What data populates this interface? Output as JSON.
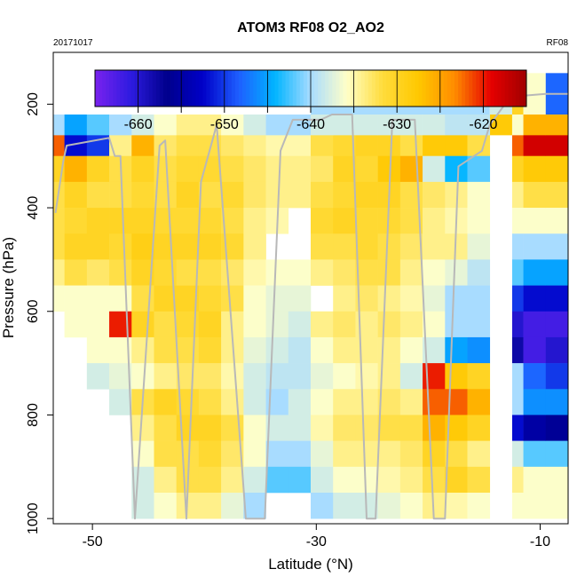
{
  "chart_data": {
    "type": "heatmap",
    "title": "ATOM3 RF08 O2_AO2",
    "date_label": "20171017",
    "flight_label": "RF08",
    "xlabel": "Latitude (°N)",
    "ylabel": "Pressure (hPa)",
    "xlim": [
      -53.5,
      -7.5
    ],
    "ylim": [
      1010,
      100
    ],
    "x_ticks": [
      -50,
      -30,
      -10
    ],
    "y_ticks": [
      200,
      400,
      600,
      800,
      1000
    ],
    "colorbar": {
      "range": [
        -665,
        -615
      ],
      "ticks": [
        -660,
        -650,
        -640,
        -630,
        -620
      ],
      "colors": [
        "#7a22ee",
        "#2d1be0",
        "#00008c",
        "#0000c8",
        "#1e5fff",
        "#00b4ff",
        "#a8dcff",
        "#ffffc8",
        "#ffdc3c",
        "#ffc800",
        "#ff8c00",
        "#e60000",
        "#a00000"
      ]
    },
    "layers_hPa": [
      [
        220,
        260
      ],
      [
        260,
        300
      ],
      [
        300,
        350
      ],
      [
        350,
        400
      ],
      [
        400,
        450
      ],
      [
        450,
        500
      ],
      [
        500,
        550
      ],
      [
        550,
        600
      ],
      [
        600,
        650
      ],
      [
        650,
        700
      ],
      [
        700,
        750
      ],
      [
        750,
        800
      ],
      [
        800,
        850
      ],
      [
        850,
        900
      ],
      [
        900,
        950
      ],
      [
        950,
        1000
      ]
    ],
    "columns": [
      {
        "lat_range": [
          -53.5,
          -52.5
        ],
        "values": [
          -640,
          -622,
          -630,
          -632,
          -632,
          -632,
          -634,
          -636,
          null,
          null,
          null,
          null,
          null,
          null,
          null,
          null
        ]
      },
      {
        "lat_range": [
          -52.5,
          -50.5
        ],
        "values": [
          -645,
          -652,
          -626,
          -630,
          -631,
          -630,
          -632,
          -636,
          -636,
          null,
          null,
          null,
          null,
          null,
          null,
          null
        ]
      },
      {
        "lat_range": [
          -50.5,
          -48.5
        ],
        "values": [
          -642,
          -650,
          -630,
          -632,
          -630,
          -630,
          -633,
          -636,
          -636,
          -636,
          -638,
          null,
          null,
          null,
          null,
          null
        ]
      },
      {
        "lat_range": [
          -48.5,
          -46.5
        ],
        "values": [
          -640,
          -634,
          -632,
          -632,
          -630,
          -631,
          -632,
          -636,
          -620,
          -636,
          -637,
          -638,
          null,
          null,
          null,
          null
        ]
      },
      {
        "lat_range": [
          -46.5,
          -44.5
        ],
        "values": [
          -638,
          -626,
          -630,
          -631,
          -630,
          -629,
          -630,
          -632,
          -630,
          -634,
          -636,
          -632,
          -634,
          -636,
          -638,
          -638
        ]
      },
      {
        "lat_range": [
          -44.5,
          -42.5
        ],
        "values": [
          -636,
          -633,
          -632,
          -632,
          -631,
          -630,
          -631,
          -630,
          -632,
          -632,
          -634,
          -630,
          -632,
          -632,
          -634,
          -636
        ]
      },
      {
        "lat_range": [
          -42.5,
          -40.5
        ],
        "values": [
          -634,
          -632,
          -631,
          -630,
          -631,
          -630,
          -632,
          -630,
          -631,
          -632,
          -633,
          -631,
          -630,
          -632,
          -632,
          -634
        ]
      },
      {
        "lat_range": [
          -40.5,
          -38.5
        ],
        "values": [
          -634,
          -632,
          -631,
          -632,
          -631,
          -630,
          -632,
          -631,
          -630,
          -631,
          -633,
          -632,
          -630,
          -631,
          -632,
          -634
        ]
      },
      {
        "lat_range": [
          -38.5,
          -36.5
        ],
        "values": [
          -636,
          -633,
          -632,
          -631,
          -632,
          -631,
          -633,
          -632,
          -634,
          -634,
          -635,
          -634,
          -632,
          -633,
          -634,
          -637
        ]
      },
      {
        "lat_range": [
          -36.5,
          -34.5
        ],
        "values": [
          -638,
          -634,
          -633,
          -633,
          -634,
          -634,
          -635,
          -636,
          -636,
          -637,
          -638,
          -638,
          -636,
          -636,
          -638,
          -640
        ]
      },
      {
        "lat_range": [
          -34.5,
          -32.5
        ],
        "values": [
          -640,
          -635,
          -634,
          -634,
          -635,
          null,
          -636,
          -637,
          -637,
          -638,
          -639,
          -640,
          -638,
          -640,
          -642,
          null
        ]
      },
      {
        "lat_range": [
          -32.5,
          -30.5
        ],
        "values": [
          -640,
          -635,
          -634,
          -634,
          null,
          null,
          -636,
          -637,
          -638,
          -639,
          -639,
          -638,
          -638,
          -640,
          -642,
          null
        ]
      },
      {
        "lat_range": [
          -30.5,
          -28.5
        ],
        "values": [
          -638,
          -632,
          -633,
          -632,
          -631,
          -632,
          -634,
          null,
          -634,
          -636,
          -637,
          -636,
          -635,
          -637,
          -638,
          -640
        ]
      },
      {
        "lat_range": [
          -28.5,
          -26.5
        ],
        "values": [
          -638,
          -631,
          -630,
          -631,
          -630,
          -632,
          -633,
          -634,
          -633,
          -634,
          -636,
          -634,
          -633,
          -634,
          -636,
          -638
        ]
      },
      {
        "lat_range": [
          -26.5,
          -24.5
        ],
        "values": [
          -638,
          -630,
          -631,
          -630,
          -631,
          -631,
          -632,
          -633,
          -634,
          -634,
          -635,
          -634,
          -633,
          -634,
          -636,
          -638
        ]
      },
      {
        "lat_range": [
          -24.5,
          -22.5
        ],
        "values": [
          -638,
          -630,
          -628,
          -630,
          -631,
          -632,
          -632,
          -634,
          -633,
          -634,
          -634,
          -633,
          -632,
          -634,
          -635,
          -637
        ]
      },
      {
        "lat_range": [
          -22.5,
          -20.5
        ],
        "values": [
          -638,
          -632,
          -626,
          -632,
          -632,
          -633,
          -634,
          -635,
          -634,
          -636,
          -638,
          -634,
          -632,
          -633,
          -634,
          -636
        ]
      },
      {
        "lat_range": [
          -20.5,
          -18.5
        ],
        "values": [
          -638,
          -628,
          -638,
          -633,
          -634,
          -634,
          -636,
          -637,
          -636,
          -638,
          -620,
          -622,
          -626,
          -630,
          -632,
          -634
        ]
      },
      {
        "lat_range": [
          -18.5,
          -16.5
        ],
        "values": [
          -639,
          -628,
          -644,
          -634,
          -635,
          -634,
          -637,
          -640,
          -640,
          -645,
          -628,
          -622,
          -628,
          -632,
          -630,
          -635
        ]
      },
      {
        "lat_range": [
          -16.5,
          -14.5
        ],
        "values": [
          -639,
          -632,
          -642,
          -636,
          -636,
          -637,
          -639,
          -640,
          -640,
          -646,
          -630,
          -626,
          -630,
          -634,
          -632,
          -636
        ]
      },
      {
        "lat_range": [
          -12.5,
          -11.5
        ],
        "values": [
          -636,
          -622,
          -630,
          -634,
          -636,
          -640,
          -642,
          -650,
          -660,
          -658,
          -640,
          -640,
          -652,
          -638,
          -634,
          -636
        ]
      },
      {
        "lat_range": [
          -11.5,
          -9.5
        ],
        "values": [
          -626,
          -618,
          -628,
          -632,
          -636,
          -640,
          -645,
          -652,
          -662,
          -662,
          -648,
          -646,
          -655,
          -642,
          -636,
          -636
        ]
      },
      {
        "lat_range": [
          -9.5,
          -7.5
        ],
        "values": [
          -626,
          -618,
          -628,
          -632,
          -636,
          -640,
          -645,
          -652,
          -662,
          -660,
          -650,
          -646,
          -656,
          -642,
          -636,
          -636
        ]
      }
    ],
    "top_patches": [
      {
        "lat_range": [
          -30.5,
          -14.5
        ],
        "p_range": [
          180,
          220
        ],
        "value": -640
      },
      {
        "lat_range": [
          -14.5,
          -12.5
        ],
        "p_range": [
          195,
          220
        ],
        "value": -638
      },
      {
        "lat_range": [
          -12.5,
          -11.5
        ],
        "p_range": [
          140,
          220
        ],
        "value": -630
      },
      {
        "lat_range": [
          -11.5,
          -9.5
        ],
        "p_range": [
          140,
          220
        ],
        "value": -636
      },
      {
        "lat_range": [
          -9.5,
          -7.5
        ],
        "p_range": [
          140,
          220
        ],
        "value": -648
      },
      {
        "lat_range": [
          -16.5,
          -12.5
        ],
        "p_range": [
          220,
          260
        ],
        "value": -628
      }
    ],
    "flight_track": [
      [
        -53.3,
        410
      ],
      [
        -52.6,
        310
      ],
      [
        -52.3,
        280
      ],
      [
        -48.5,
        265
      ],
      [
        -48.0,
        300
      ],
      [
        -47.5,
        300
      ],
      [
        -46.2,
        1000
      ],
      [
        -44.0,
        280
      ],
      [
        -43.5,
        270
      ],
      [
        -41.6,
        1000
      ],
      [
        -40.3,
        350
      ],
      [
        -38.9,
        240
      ],
      [
        -36.3,
        1000
      ],
      [
        -34.6,
        1000
      ],
      [
        -33.2,
        290
      ],
      [
        -32.1,
        230
      ],
      [
        -29.6,
        230
      ],
      [
        -28.6,
        220
      ],
      [
        -26.8,
        220
      ],
      [
        -25.5,
        1000
      ],
      [
        -24.7,
        1000
      ],
      [
        -23.2,
        230
      ],
      [
        -21.2,
        230
      ],
      [
        -19.5,
        1000
      ],
      [
        -18.5,
        1000
      ],
      [
        -17.3,
        320
      ],
      [
        -15.2,
        290
      ],
      [
        -14.5,
        240
      ],
      [
        -12.8,
        190
      ],
      [
        -12.3,
        185
      ],
      [
        -9.5,
        180
      ],
      [
        -7.5,
        180
      ]
    ]
  }
}
